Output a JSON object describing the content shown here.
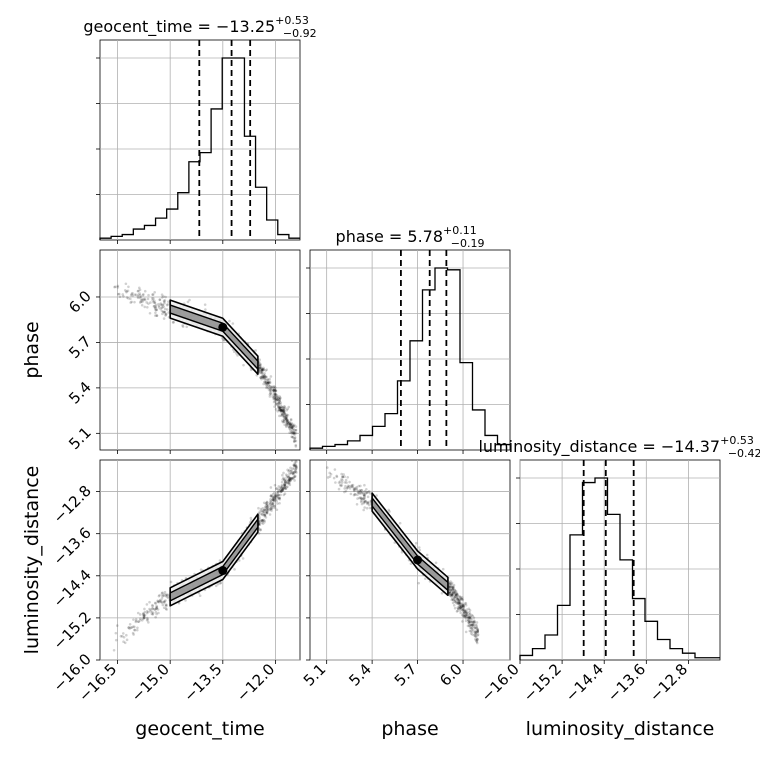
{
  "chart_data": {
    "type": "corner",
    "parameters": [
      {
        "name": "geocent_time",
        "label": "geocent_time",
        "title": "geocent_time = −13.25",
        "median": "−13.25",
        "plus": "+0.53",
        "minus": "−0.92",
        "range": [
          -17.0,
          -11.3
        ],
        "ticks": [
          -16.5,
          -15.0,
          -13.5,
          -12.0
        ],
        "tick_labels": [
          "−16.5",
          "−15.0",
          "−13.5",
          "−12.0"
        ],
        "quantiles": [
          -14.17,
          -13.25,
          -12.72
        ]
      },
      {
        "name": "phase",
        "label": "phase",
        "title": "phase = 5.78",
        "median": "5.78",
        "plus": "+0.11",
        "minus": "−0.19",
        "range": [
          4.99,
          6.31
        ],
        "ticks": [
          5.1,
          5.4,
          5.7,
          6.0
        ],
        "tick_labels": [
          "5.1",
          "5.4",
          "5.7",
          "6.0"
        ],
        "quantiles": [
          5.59,
          5.78,
          5.89
        ]
      },
      {
        "name": "luminosity_distance",
        "label": "luminosity_distance",
        "title": "luminosity_distance = −14.37",
        "median": "−14.37",
        "plus": "+0.53",
        "minus": "−0.42",
        "range": [
          -16.0,
          -12.2
        ],
        "ticks": [
          -16.0,
          -15.2,
          -14.4,
          -13.6,
          -12.8
        ],
        "tick_labels": [
          "−16.0",
          "−15.2",
          "−14.4",
          "−13.6",
          "−12.8"
        ],
        "quantiles": [
          -14.79,
          -14.37,
          -13.84
        ]
      }
    ],
    "histograms": [
      {
        "param": "geocent_time",
        "counts": [
          1,
          2,
          3,
          6,
          8,
          12,
          17,
          26,
          43,
          48,
          72,
          100,
          100,
          57,
          29,
          11,
          3,
          1
        ]
      },
      {
        "param": "phase",
        "counts": [
          1,
          2,
          3,
          5,
          8,
          13,
          20,
          38,
          60,
          88,
          100,
          99,
          48,
          22,
          8,
          3
        ]
      },
      {
        "param": "luminosity_distance",
        "counts": [
          2,
          5,
          11,
          24,
          55,
          78,
          80,
          64,
          44,
          27,
          17,
          9,
          5,
          3,
          1,
          1
        ]
      }
    ],
    "pairs": [
      {
        "x": "geocent_time",
        "y": "phase",
        "relation": "negative",
        "points": [
          [
            -16.6,
            6.07
          ],
          [
            -15.0,
            5.92
          ],
          [
            -13.5,
            5.8
          ],
          [
            -12.5,
            5.55
          ],
          [
            -11.4,
            5.07
          ]
        ]
      },
      {
        "x": "geocent_time",
        "y": "luminosity_distance",
        "relation": "positive",
        "points": [
          [
            -16.6,
            -15.6
          ],
          [
            -15.0,
            -14.8
          ],
          [
            -13.5,
            -14.3
          ],
          [
            -12.5,
            -13.4
          ],
          [
            -11.4,
            -12.35
          ]
        ]
      },
      {
        "x": "phase",
        "y": "luminosity_distance",
        "relation": "negative",
        "points": [
          [
            5.1,
            -12.4
          ],
          [
            5.4,
            -13.0
          ],
          [
            5.7,
            -14.1
          ],
          [
            5.9,
            -14.6
          ],
          [
            6.1,
            -15.5
          ]
        ]
      }
    ],
    "grid": true
  }
}
